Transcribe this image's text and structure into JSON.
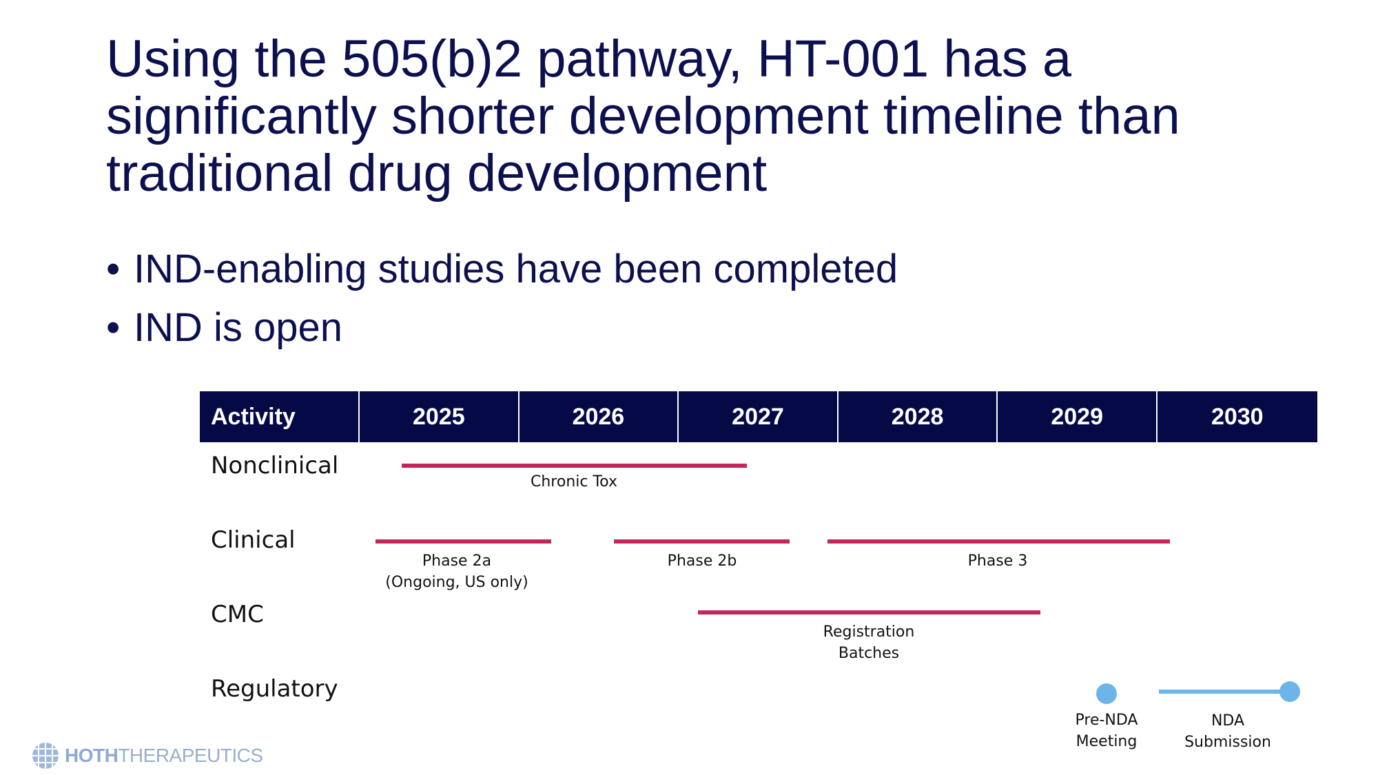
{
  "slide": {
    "title": "Using the 505(b)2 pathway, HT-001 has a significantly shorter development timeline than traditional drug development",
    "bullets": [
      "IND-enabling studies have been completed",
      "IND is open"
    ]
  },
  "timeline": {
    "header": {
      "activity": "Activity",
      "years": [
        "2025",
        "2026",
        "2027",
        "2028",
        "2029",
        "2030"
      ]
    },
    "rows": [
      {
        "label": "Nonclinical"
      },
      {
        "label": "Clinical"
      },
      {
        "label": "CMC"
      },
      {
        "label": "Regulatory"
      }
    ],
    "items": {
      "chronic_tox": "Chronic Tox",
      "phase_2a_line1": "Phase 2a",
      "phase_2a_line2": "(Ongoing, US only)",
      "phase_2b": "Phase 2b",
      "phase_3": "Phase 3",
      "registration_line1": "Registration",
      "registration_line2": "Batches",
      "pre_nda_line1": "Pre-NDA",
      "pre_nda_line2": "Meeting",
      "nda_line1": "NDA",
      "nda_line2": "Submission"
    },
    "colors": {
      "header_bg": "#050a47",
      "bar": "#c2265a",
      "milestone": "#6cb5e8"
    }
  },
  "footer": {
    "logo_bold": "HOTH",
    "logo_light": "THERAPEUTICS"
  }
}
